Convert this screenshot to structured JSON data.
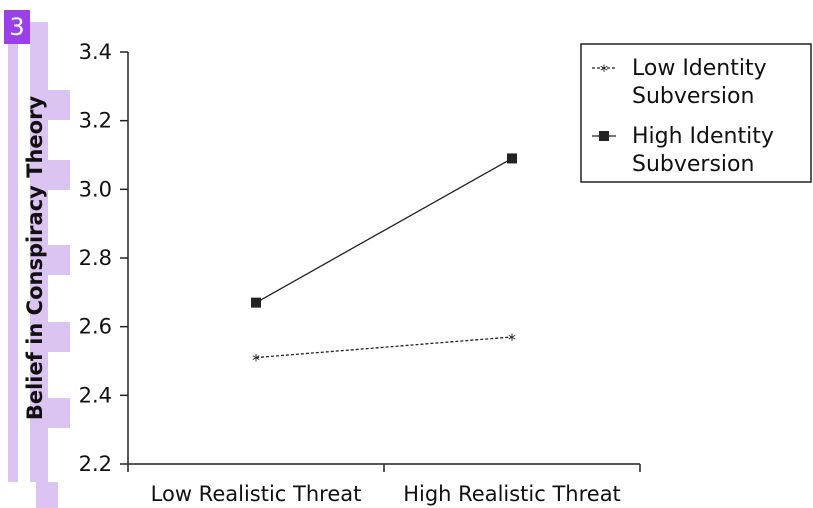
{
  "badge": {
    "label": "3",
    "color": "#9b40e8"
  },
  "accent_color": "#dcc4f2",
  "chart_data": {
    "type": "line",
    "title": "",
    "xlabel": "",
    "ylabel": "Belief in Conspiracy Theory",
    "categories": [
      "Low Realistic Threat",
      "High Realistic Threat"
    ],
    "ylim": [
      2.2,
      3.4
    ],
    "yticks": [
      "2.2",
      "2.4",
      "2.6",
      "2.8",
      "3.0",
      "3.2",
      "3.4"
    ],
    "ytick_values": [
      2.2,
      2.4,
      2.6,
      2.8,
      3.0,
      3.2,
      3.4
    ],
    "grid": false,
    "legend_position": "top-right",
    "series": [
      {
        "name": "Low Identity Subversion",
        "name_lines": [
          "Low Identity",
          "Subversion"
        ],
        "values": [
          2.51,
          2.57
        ],
        "line_style": "dotted",
        "marker": "asterisk",
        "color": "#222222"
      },
      {
        "name": "High Identity Subversion",
        "name_lines": [
          "High Identity",
          "Subversion"
        ],
        "values": [
          2.67,
          3.09
        ],
        "line_style": "solid",
        "marker": "square",
        "color": "#222222"
      }
    ]
  }
}
